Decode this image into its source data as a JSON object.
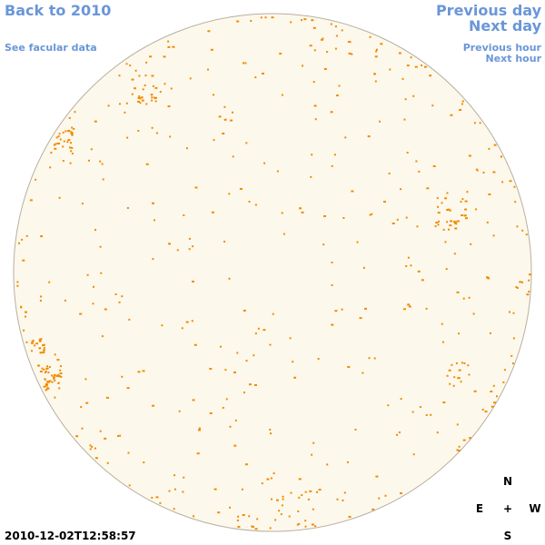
{
  "header": {
    "back_link": "Back to 2010",
    "data_link": "See facular data"
  },
  "navigation": {
    "previous_day": "Previous day",
    "next_day": "Next day",
    "previous_hour": "Previous hour",
    "next_hour": "Next hour"
  },
  "compass": {
    "north": "N",
    "east": "E",
    "center": "+",
    "west": "W",
    "south": "S"
  },
  "timestamp": "2010-12-02T12:58:57"
}
